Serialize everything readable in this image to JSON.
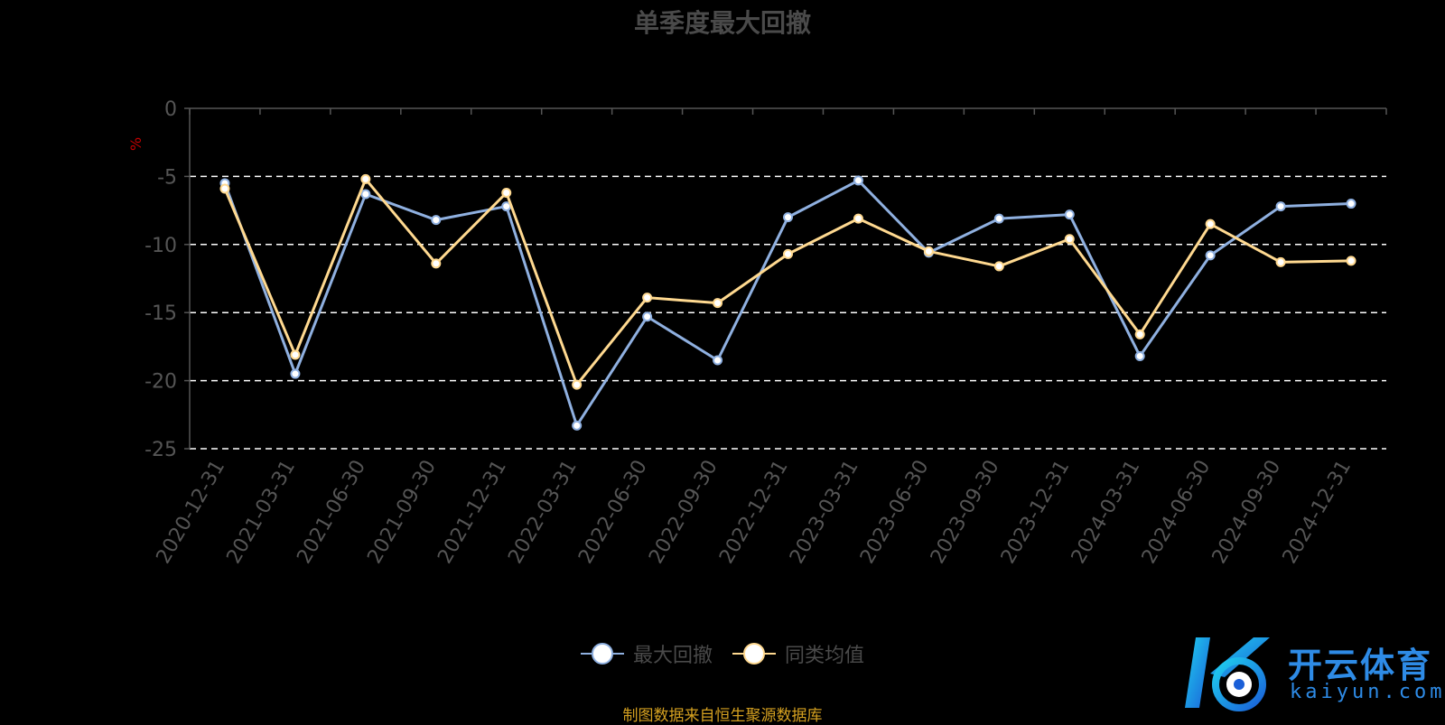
{
  "title": "单季度最大回撤",
  "unit_label": "%",
  "source_note": "制图数据来自恒生聚源数据库",
  "watermark": {
    "cn": "开云体育",
    "en": "kaiyun.com"
  },
  "colors": {
    "series1": "#8fb0e0",
    "series2": "#ffd990",
    "axis": "#555555",
    "tick_text": "#555555",
    "grid": "#ffffff"
  },
  "chart_data": {
    "type": "line",
    "title": "单季度最大回撤",
    "ylabel": "%",
    "ylim": [
      -25,
      0
    ],
    "yticks": [
      0,
      -5,
      -10,
      -15,
      -20,
      -25
    ],
    "grid": true,
    "legend_position": "bottom-center",
    "categories": [
      "2020-12-31",
      "2021-03-31",
      "2021-06-30",
      "2021-09-30",
      "2021-12-31",
      "2022-03-31",
      "2022-06-30",
      "2022-09-30",
      "2022-12-31",
      "2023-03-31",
      "2023-06-30",
      "2023-09-30",
      "2023-12-31",
      "2024-03-31",
      "2024-06-30",
      "2024-09-30",
      "2024-12-31"
    ],
    "series": [
      {
        "name": "最大回撤",
        "values": [
          -5.5,
          -19.5,
          -6.3,
          -8.2,
          -7.2,
          -23.3,
          -15.3,
          -18.5,
          -8.0,
          -5.3,
          -10.6,
          -8.1,
          -7.8,
          -18.2,
          -10.8,
          -7.2,
          -7.0
        ]
      },
      {
        "name": "同类均值",
        "values": [
          -5.9,
          -18.1,
          -5.2,
          -11.4,
          -6.2,
          -20.3,
          -13.9,
          -14.3,
          -10.7,
          -8.1,
          -10.5,
          -11.6,
          -9.6,
          -16.6,
          -8.5,
          -11.3,
          -11.2
        ]
      }
    ]
  }
}
